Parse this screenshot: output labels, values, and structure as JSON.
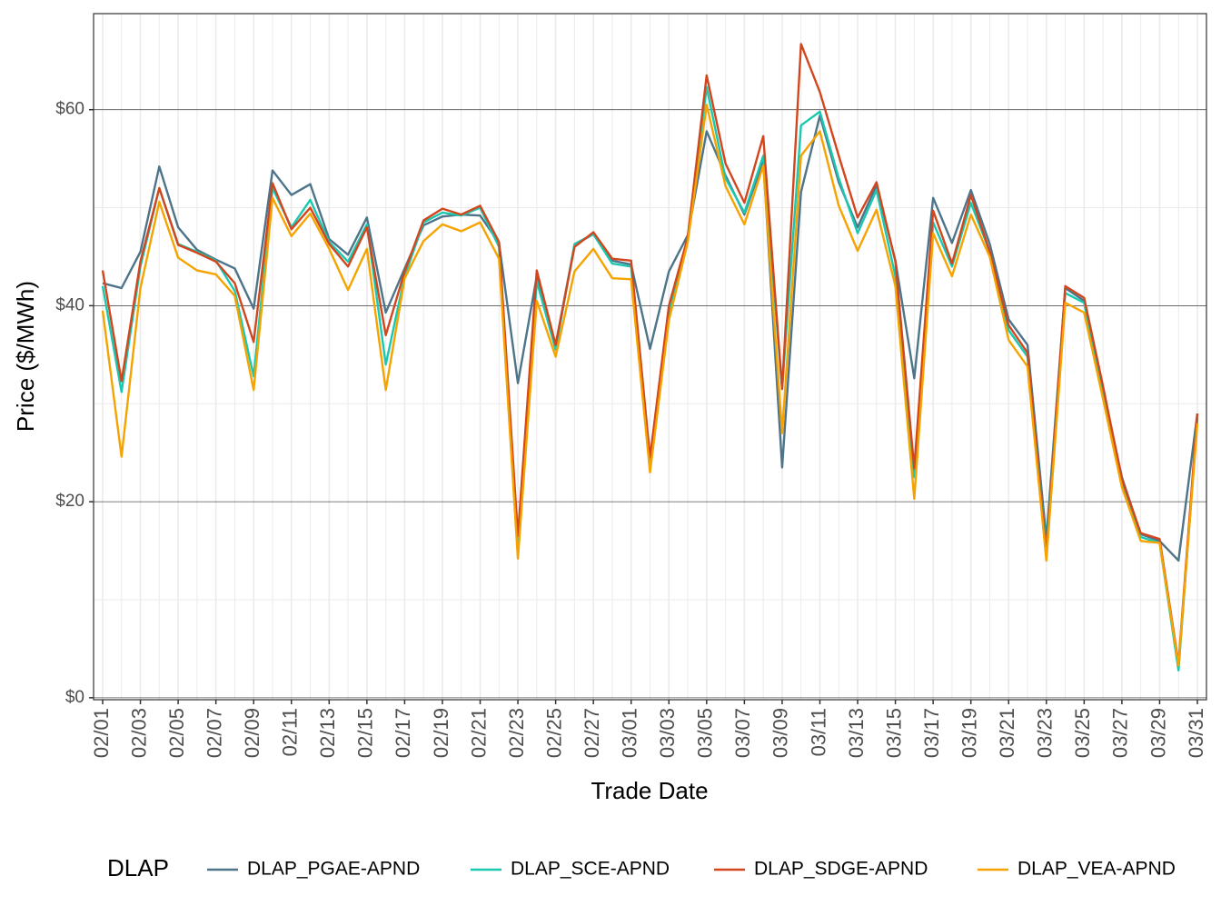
{
  "chart_data": {
    "type": "line",
    "x_label": "Trade Date",
    "y_label": "Price ($/MWh)",
    "legend_title": "DLAP",
    "legend_position": "bottom",
    "grid": true,
    "categories": [
      "02/01",
      null,
      "02/03",
      null,
      "02/05",
      null,
      "02/07",
      null,
      "02/09",
      null,
      "02/11",
      null,
      "02/13",
      null,
      "02/15",
      null,
      "02/17",
      null,
      "02/19",
      null,
      "02/21",
      null,
      "02/23",
      null,
      "02/25",
      null,
      "02/27",
      null,
      "03/01",
      null,
      "03/03",
      null,
      "03/05",
      null,
      "03/07",
      null,
      "03/09",
      null,
      "03/11",
      null,
      "03/13",
      null,
      "03/15",
      null,
      "03/17",
      null,
      "03/19",
      null,
      "03/21",
      null,
      "03/23",
      null,
      "03/25",
      null,
      "03/27",
      null,
      "03/29",
      null,
      "03/31"
    ],
    "ylim": [
      -0.2,
      69.8
    ],
    "yticks": [
      {
        "value": 0,
        "label": "$0"
      },
      {
        "value": 20,
        "label": "$20"
      },
      {
        "value": 40,
        "label": "$40"
      },
      {
        "value": 60,
        "label": "$60"
      }
    ],
    "series": [
      {
        "name": "DLAP_PGAE-APND",
        "color": "#4d7488",
        "values": [
          42.3,
          41.8,
          45.5,
          54.2,
          48,
          45.7,
          44.7,
          43.8,
          39.7,
          53.8,
          51.3,
          52.4,
          46.8,
          45.2,
          49,
          39.3,
          43.8,
          48.2,
          49.1,
          49.3,
          49.2,
          46.4,
          32.1,
          43,
          36,
          46.2,
          47.3,
          44.6,
          44.2,
          35.6,
          43.5,
          47.2,
          57.8,
          53.3,
          49.3,
          54.8,
          23.5,
          51.6,
          59.4,
          52.6,
          48,
          52.3,
          44.6,
          32.6,
          51,
          46.4,
          51.8,
          46.3,
          38.6,
          36,
          16.2,
          41.8,
          40.5,
          31.5,
          22.5,
          16.7,
          16,
          14,
          29
        ]
      },
      {
        "name": "DLAP_SCE-APND",
        "color": "#1ac8b0",
        "values": [
          42,
          31.2,
          44,
          52,
          46.3,
          45.5,
          44.6,
          41.5,
          32.8,
          52,
          48,
          50.8,
          46.5,
          44.5,
          48.3,
          34,
          43,
          48.5,
          49.5,
          49.2,
          50,
          46,
          14.5,
          42.5,
          35.5,
          46.3,
          47.3,
          44.3,
          44,
          24,
          39,
          47,
          62.3,
          53,
          49.5,
          55.3,
          31.5,
          58.4,
          59.8,
          53,
          47.4,
          51.8,
          43,
          22.5,
          48.5,
          44,
          50.5,
          45.5,
          37.5,
          34.8,
          15,
          41.3,
          40.3,
          31,
          22,
          16.4,
          15.8,
          2.8,
          28.5
        ]
      },
      {
        "name": "DLAP_SDGE-APND",
        "color": "#d2461e",
        "values": [
          43.6,
          32.3,
          44.5,
          52,
          46.2,
          45.4,
          44.5,
          42.3,
          36.3,
          52.5,
          47.8,
          50,
          46.3,
          44,
          48,
          37,
          43.5,
          48.7,
          49.9,
          49.3,
          50.2,
          46.5,
          16.5,
          43.6,
          36,
          46,
          47.5,
          44.8,
          44.6,
          24.5,
          40,
          47,
          63.5,
          54.5,
          50.5,
          57.3,
          31.5,
          66.7,
          61.8,
          55.3,
          49,
          52.6,
          44.5,
          23.4,
          49.7,
          44.3,
          51.3,
          45.5,
          38,
          35.2,
          14.5,
          42,
          40.8,
          31.8,
          22.3,
          16.8,
          16.2,
          3.5,
          29
        ]
      },
      {
        "name": "DLAP_VEA-APND",
        "color": "#f5a300",
        "values": [
          39.5,
          24.6,
          41.8,
          50.6,
          44.9,
          43.6,
          43.2,
          41,
          31.4,
          51,
          47.1,
          49.4,
          45.8,
          41.6,
          45.8,
          31.4,
          42.8,
          46.6,
          48.3,
          47.6,
          48.5,
          44.8,
          14.2,
          40.5,
          34.8,
          43.5,
          45.8,
          42.8,
          42.7,
          23,
          38.5,
          46.5,
          60.5,
          52.2,
          48.3,
          54.3,
          27,
          55.3,
          57.8,
          50.2,
          45.6,
          49.8,
          42,
          20.3,
          47.4,
          43,
          49.3,
          45,
          36.5,
          33.8,
          14,
          40.3,
          39.3,
          30.5,
          21.5,
          16,
          15.8,
          3.3,
          28
        ]
      }
    ]
  }
}
